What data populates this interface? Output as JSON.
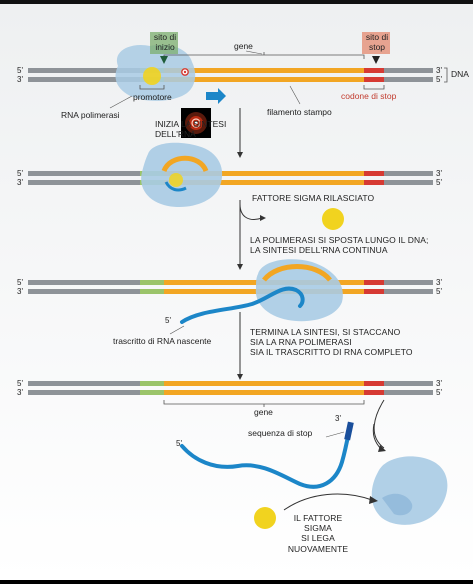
{
  "labels": {
    "dna": "DNA",
    "sito_inizio": [
      "sito di",
      "inizio"
    ],
    "gene_top": "gene",
    "sito_stop": [
      "sito di",
      "stop"
    ],
    "promotore": "promotore",
    "rna_polimerasi": "RNA polimerasi",
    "inizia_sintesi": [
      "INIZIA LA SINTESI",
      "DELL'RNA"
    ],
    "filamento_stampo": "filamento stampo",
    "codone_stop": "codone di stop",
    "fattore_sigma_rilasciato": "FATTORE SIGMA RILASCIATO",
    "polimerasi_si_sposta": [
      "LA POLIMERASI SI SPOSTA LUNGO IL DNA;",
      "LA SINTESI DELL'RNA CONTINUA"
    ],
    "trascritto_nascente": "trascritto di RNA nascente",
    "termina_sintesi": [
      "TERMINA LA SINTESI, SI STACCANO",
      "SIA LA RNA POLIMERASI",
      "SIA IL TRASCRITTO DI RNA COMPLETO"
    ],
    "gene_bottom": "gene",
    "sequenza_stop": "sequenza di stop",
    "fattore_sigma_lega": [
      "IL FATTORE",
      "SIGMA",
      "SI LEGA",
      "NUOVAMENTE"
    ],
    "five_prime": "5'",
    "three_prime": "3'"
  },
  "colors": {
    "strand_gray": "#8e9398",
    "gene_orange": "#f2a623",
    "promoter_green": "#9bc46a",
    "stop_red": "#d63a33",
    "polymerase_blue": "#a9cbe4",
    "rna_blue": "#1c86c8",
    "sigma_yellow": "#f1d31f",
    "start_green": "#7cae6e",
    "stop_box": "#e5957f"
  }
}
